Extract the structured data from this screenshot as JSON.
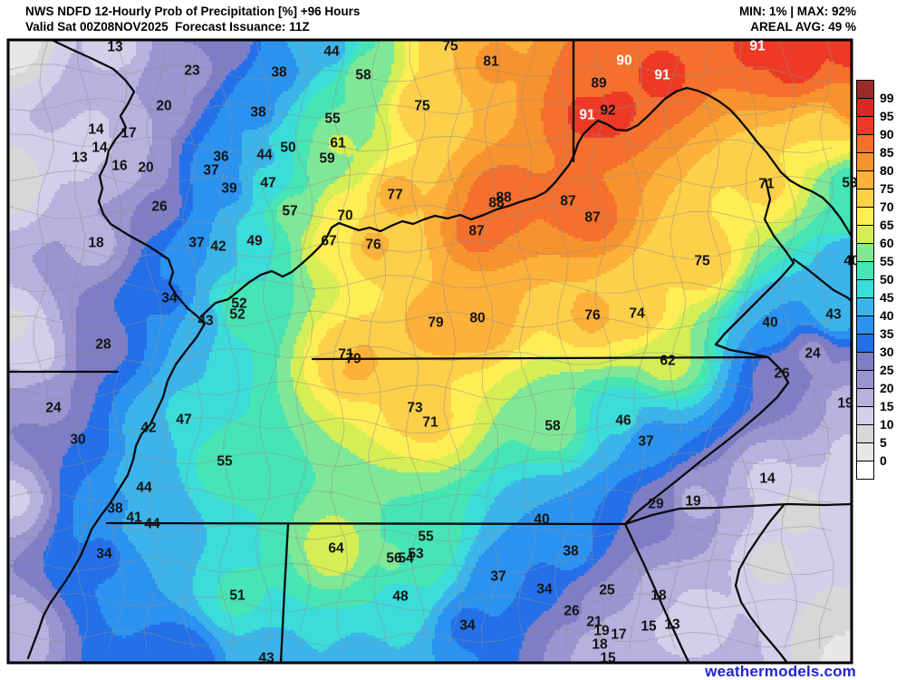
{
  "header": {
    "title": "NWS NDFD 12-Hourly Prob of Precipitation [%] +96 Hours",
    "valid_line": "Valid Sat 00Z08NOV2025  Forecast Issuance: 11Z",
    "min_max": "MIN: 1% | MAX: 92%",
    "areal_avg": "AREAL AVG: 49 %"
  },
  "watermark": {
    "text": "weathermodels.com",
    "color": "#2326cf"
  },
  "legend": {
    "tick_labels": [
      99,
      95,
      90,
      85,
      80,
      75,
      70,
      65,
      60,
      55,
      50,
      45,
      40,
      35,
      30,
      25,
      20,
      15,
      10,
      5,
      0
    ],
    "colors": [
      "#9b2a2b",
      "#dc2722",
      "#ee3a25",
      "#f4702c",
      "#f7932f",
      "#fbb13a",
      "#fdd04a",
      "#feee55",
      "#d6ee55",
      "#7fe896",
      "#46e5b3",
      "#3bdcd9",
      "#3cb4ea",
      "#2b92f0",
      "#2470e9",
      "#7e7dc5",
      "#9a94cf",
      "#b7b1dd",
      "#d3cfe9",
      "#d7d7d9",
      "#e7e7e7",
      "#ffffff"
    ]
  },
  "map": {
    "value_labels": [
      [
        13,
        127,
        52
      ],
      [
        23,
        212,
        78
      ],
      [
        38,
        308,
        80
      ],
      [
        20,
        181,
        117
      ],
      [
        38,
        285,
        124
      ],
      [
        44,
        366,
        57
      ],
      [
        58,
        401,
        83
      ],
      [
        75,
        497,
        51
      ],
      [
        81,
        542,
        68
      ],
      [
        75,
        466,
        117
      ],
      [
        90,
        689,
        67,
        1
      ],
      [
        91,
        731,
        83,
        1
      ],
      [
        89,
        661,
        92
      ],
      [
        91,
        836,
        51,
        1
      ],
      [
        91,
        648,
        127,
        1
      ],
      [
        92,
        671,
        122
      ],
      [
        14,
        106,
        143
      ],
      [
        17,
        142,
        147
      ],
      [
        14,
        110,
        163
      ],
      [
        13,
        88,
        174
      ],
      [
        16,
        132,
        183
      ],
      [
        20,
        161,
        185
      ],
      [
        36,
        244,
        173
      ],
      [
        37,
        233,
        188
      ],
      [
        44,
        292,
        171
      ],
      [
        50,
        318,
        163
      ],
      [
        55,
        367,
        131
      ],
      [
        61,
        373,
        158
      ],
      [
        59,
        361,
        175
      ],
      [
        39,
        253,
        208
      ],
      [
        47,
        296,
        202
      ],
      [
        57,
        320,
        233
      ],
      [
        26,
        176,
        228
      ],
      [
        18,
        106,
        268
      ],
      [
        37,
        217,
        268
      ],
      [
        42,
        241,
        272
      ],
      [
        49,
        281,
        266
      ],
      [
        77,
        436,
        215
      ],
      [
        70,
        381,
        238
      ],
      [
        67,
        363,
        266
      ],
      [
        76,
        412,
        270
      ],
      [
        87,
        526,
        255
      ],
      [
        88,
        548,
        224
      ],
      [
        88,
        556,
        218
      ],
      [
        87,
        627,
        222
      ],
      [
        87,
        654,
        240
      ],
      [
        71,
        846,
        203
      ],
      [
        53,
        938,
        202
      ],
      [
        75,
        775,
        288
      ],
      [
        40,
        940,
        288
      ],
      [
        74,
        703,
        346
      ],
      [
        43,
        920,
        347
      ],
      [
        40,
        850,
        356
      ],
      [
        24,
        897,
        390
      ],
      [
        62,
        737,
        398
      ],
      [
        26,
        863,
        412
      ],
      [
        19,
        933,
        445
      ],
      [
        46,
        688,
        464
      ],
      [
        37,
        713,
        487
      ],
      [
        34,
        187,
        329
      ],
      [
        52,
        264,
        335
      ],
      [
        52,
        262,
        347
      ],
      [
        43,
        227,
        354
      ],
      [
        28,
        114,
        380
      ],
      [
        79,
        481,
        356
      ],
      [
        80,
        527,
        351
      ],
      [
        76,
        654,
        348
      ],
      [
        71,
        382,
        391
      ],
      [
        79,
        390,
        396
      ],
      [
        73,
        458,
        450
      ],
      [
        71,
        475,
        466
      ],
      [
        58,
        610,
        470
      ],
      [
        24,
        59,
        450
      ],
      [
        47,
        203,
        463
      ],
      [
        42,
        164,
        472
      ],
      [
        30,
        86,
        485
      ],
      [
        55,
        248,
        509
      ],
      [
        44,
        159,
        538
      ],
      [
        38,
        127,
        561
      ],
      [
        41,
        148,
        571
      ],
      [
        44,
        168,
        578
      ],
      [
        34,
        115,
        611
      ],
      [
        51,
        262,
        657
      ],
      [
        43,
        294,
        726
      ],
      [
        40,
        598,
        573
      ],
      [
        55,
        470,
        592
      ],
      [
        64,
        371,
        605
      ],
      [
        38,
        630,
        608
      ],
      [
        56,
        435,
        616
      ],
      [
        54,
        448,
        616
      ],
      [
        53,
        459,
        611
      ],
      [
        37,
        550,
        636
      ],
      [
        34,
        601,
        650
      ],
      [
        48,
        442,
        658
      ],
      [
        26,
        631,
        674
      ],
      [
        34,
        516,
        690
      ],
      [
        21,
        656,
        686
      ],
      [
        19,
        664,
        696
      ],
      [
        17,
        683,
        700
      ],
      [
        15,
        716,
        691
      ],
      [
        13,
        742,
        689
      ],
      [
        18,
        662,
        711
      ],
      [
        15,
        671,
        726
      ],
      [
        14,
        847,
        528
      ],
      [
        29,
        724,
        556
      ],
      [
        19,
        765,
        553
      ],
      [
        25,
        670,
        651
      ],
      [
        18,
        727,
        657
      ]
    ],
    "shading_samples": [
      [
        2,
        14,
        50
      ],
      [
        5,
        14,
        200
      ],
      [
        9,
        14,
        360
      ],
      [
        13,
        40,
        390
      ],
      [
        14,
        14,
        550
      ],
      [
        16,
        14,
        700
      ],
      [
        25,
        252,
        47
      ],
      [
        40,
        335,
        47
      ],
      [
        30,
        200,
        728
      ],
      [
        44,
        400,
        725
      ],
      [
        92,
        940,
        52
      ],
      [
        92,
        880,
        70
      ],
      [
        85,
        943,
        112
      ],
      [
        70,
        915,
        150
      ],
      [
        55,
        943,
        230
      ],
      [
        20,
        945,
        430
      ],
      [
        12,
        945,
        500
      ],
      [
        8,
        880,
        560
      ],
      [
        9,
        850,
        620
      ],
      [
        11,
        760,
        680
      ],
      [
        5,
        930,
        700
      ],
      [
        3,
        940,
        730
      ]
    ]
  }
}
